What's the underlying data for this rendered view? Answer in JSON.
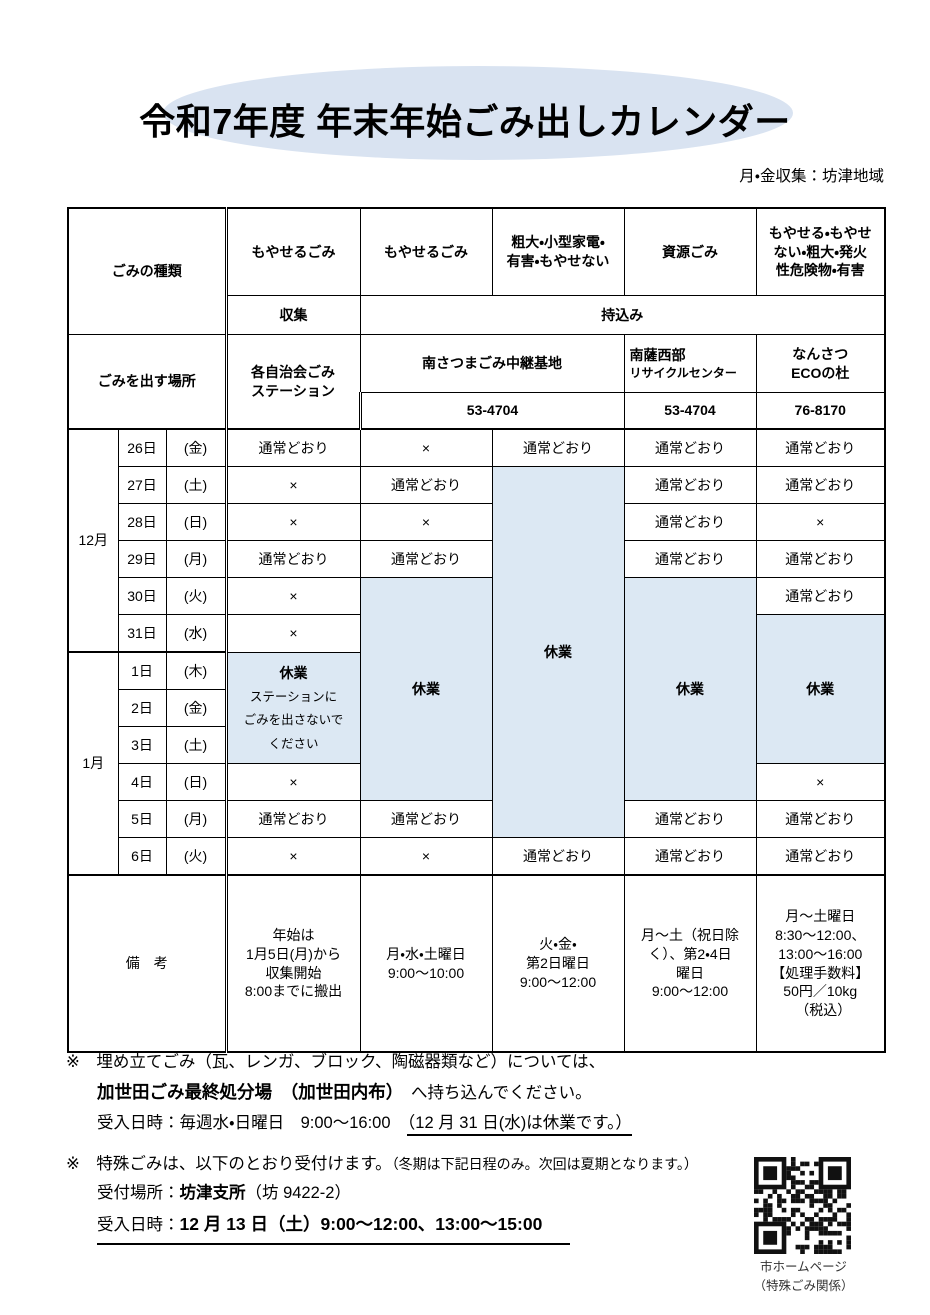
{
  "page": {
    "title": "令和7年度 年末年始ごみ出しカレンダー",
    "subtitle": "月・金収集：坊津地域"
  },
  "header": {
    "corner_type": "ごみの種類",
    "corner_place": "ごみを出す場所",
    "types": {
      "c1": "もやせるごみ",
      "c2": "もやせるごみ",
      "c3": [
        "粗大・小型家電・",
        "有害・もやせない"
      ],
      "c4": "資源ごみ",
      "c5": [
        "もやせる・もやせ",
        "ない・粗大・発火",
        "性危険物・有害"
      ]
    },
    "method": {
      "collect": "収集",
      "bring": "持込み"
    },
    "places": {
      "c1": [
        "各自治会ごみ",
        "ステーション"
      ],
      "c23": "南さつまごみ中継基地",
      "c4": [
        "南薩西部",
        "リサイクルセンター"
      ],
      "c5": [
        "なんさつ",
        "ECOの杜"
      ]
    },
    "phones": {
      "c23": "53-4704",
      "c4": "53-4704",
      "c5": "76-8170"
    }
  },
  "calendar": {
    "months": [
      "12月",
      "1月"
    ],
    "closed": "休業",
    "station_closed": [
      "休業",
      "ステーションに",
      "ごみを出さないで",
      "ください"
    ],
    "rows": [
      {
        "day": "26日",
        "wd": "(金)",
        "cells": {
          "c1": "通常どおり",
          "c2": "×",
          "c3": "通常どおり",
          "c4": "通常どおり",
          "c5": "通常どおり"
        }
      },
      {
        "day": "27日",
        "wd": "(土)",
        "cells": {
          "c1": "×",
          "c2": "通常どおり",
          "c4": "通常どおり",
          "c5": "通常どおり"
        }
      },
      {
        "day": "28日",
        "wd": "(日)",
        "cells": {
          "c1": "×",
          "c2": "×",
          "c4": "通常どおり",
          "c5": "×"
        }
      },
      {
        "day": "29日",
        "wd": "(月)",
        "cells": {
          "c1": "通常どおり",
          "c2": "通常どおり",
          "c4": "通常どおり",
          "c5": "通常どおり"
        }
      },
      {
        "day": "30日",
        "wd": "(火)",
        "cells": {
          "c1": "×",
          "c5": "通常どおり"
        }
      },
      {
        "day": "31日",
        "wd": "(水)",
        "cells": {
          "c1": "×"
        }
      },
      {
        "day": "1日",
        "wd": "(木)",
        "cells": {}
      },
      {
        "day": "2日",
        "wd": "(金)",
        "cells": {}
      },
      {
        "day": "3日",
        "wd": "(土)",
        "cells": {}
      },
      {
        "day": "4日",
        "wd": "(日)",
        "cells": {
          "c1": "×",
          "c5": "×"
        }
      },
      {
        "day": "5日",
        "wd": "(月)",
        "cells": {
          "c1": "通常どおり",
          "c2": "通常どおり",
          "c4": "通常どおり",
          "c5": "通常どおり"
        }
      },
      {
        "day": "6日",
        "wd": "(火)",
        "cells": {
          "c1": "×",
          "c2": "×",
          "c3": "通常どおり",
          "c4": "通常どおり",
          "c5": "通常どおり"
        }
      }
    ]
  },
  "remarks": {
    "label": "備　考",
    "c1": [
      "年始は",
      "1月5日(月)から",
      "収集開始",
      "8:00までに搬出"
    ],
    "c2": [
      "月・水・土曜日",
      "9:00〜10:00"
    ],
    "c3": [
      "火・金・",
      "第2日曜日",
      "9:00〜12:00"
    ],
    "c4": [
      "月〜土（祝日除",
      "く）、第2・4日",
      "曜日",
      "9:00〜12:00"
    ],
    "c5": [
      "月〜土曜日",
      "8:30〜12:00、",
      "13:00〜16:00",
      "【処理手数料】",
      "50円／10kg",
      "（税込）"
    ]
  },
  "notes": {
    "n1_line1": "※　埋め立てごみ（瓦、レンガ、ブロック、陶磁器類など）については、",
    "n1_line2_bold": "加世田ごみ最終処分場　（加世田内布）",
    "n1_line2_rest": "　へ持ち込んでください。",
    "n1_line3_pre": "受入日時：毎週水・日曜日　9:00〜16:00　",
    "n1_line3_underlined": "（12 月 31 日(水)は休業です。）",
    "n2_line1": "※　特殊ごみは、以下のとおり受付けます。",
    "n2_line1_small": "（冬期は下記日程のみ。次回は夏期となります。）",
    "n2_line2_label": "受付場所：",
    "n2_line2_bold": "坊津支所",
    "n2_line2_rest": "（坊 9422-2）",
    "n2_line3_label": "受入日時：",
    "n2_line3_bold": "12 月 13 日（土）9:00〜12:00、13:00〜15:00"
  },
  "qr": {
    "caption1": "市ホームページ",
    "caption2": "（特殊ごみ関係）"
  },
  "colors": {
    "highlight_blue": "#dce8f3",
    "title_ellipse": "#d9e3f1",
    "border": "#000000"
  }
}
